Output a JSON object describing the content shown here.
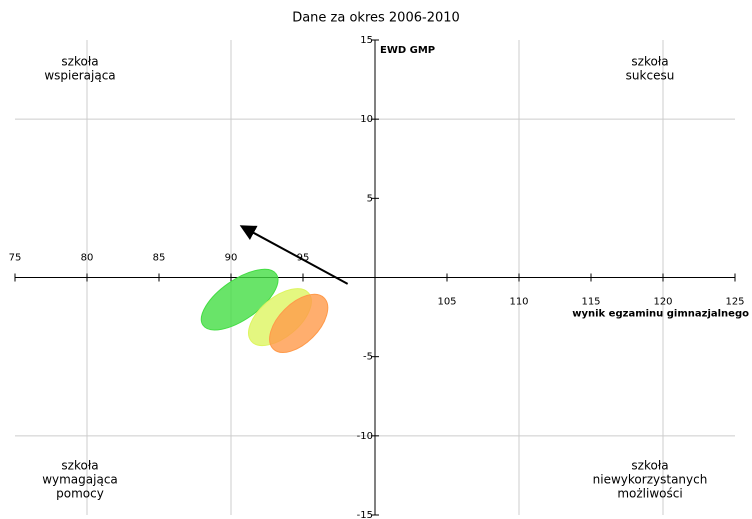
{
  "chart_data": {
    "type": "ellipse",
    "title": "Dane za okres 2006-2010",
    "xlabel": "wynik egzaminu gimnazjalnego",
    "ylabel": "EWD GMP",
    "xlim": [
      75,
      125
    ],
    "ylim": [
      -15,
      15
    ],
    "xticks": [
      75,
      80,
      85,
      90,
      95,
      105,
      110,
      115,
      120,
      125
    ],
    "yticks": [
      15,
      10,
      5,
      -5,
      -10,
      -15
    ],
    "xgrid": [
      80,
      90,
      110,
      120
    ],
    "ygrid": [
      -10,
      10
    ],
    "origin": [
      100,
      0
    ],
    "series": [
      {
        "color": "#44dd44",
        "x": 90.6,
        "y": -1.4,
        "rx": 3.1,
        "ry": 1.25,
        "rotation": -35
      },
      {
        "color": "#ddf560",
        "x": 93.4,
        "y": -2.5,
        "rx": 2.6,
        "ry": 1.25,
        "rotation": -40
      },
      {
        "color": "#ff9a4a",
        "x": 94.7,
        "y": -2.9,
        "rx": 2.5,
        "ry": 1.25,
        "rotation": -45
      }
    ],
    "arrow": {
      "x": [
        98.1,
        90.8
      ],
      "y": [
        -0.4,
        3.2
      ]
    },
    "quadrants": [
      {
        "position": "top-left",
        "lines": [
          "szkoła",
          "wspierająca"
        ]
      },
      {
        "position": "top-right",
        "lines": [
          "szkoła",
          "sukcesu"
        ]
      },
      {
        "position": "bottom-left",
        "lines": [
          "szkoła",
          "wymagająca",
          "pomocy"
        ]
      },
      {
        "position": "bottom-right",
        "lines": [
          "szkoła",
          "niewykorzystanych",
          "możliwości"
        ]
      }
    ]
  }
}
